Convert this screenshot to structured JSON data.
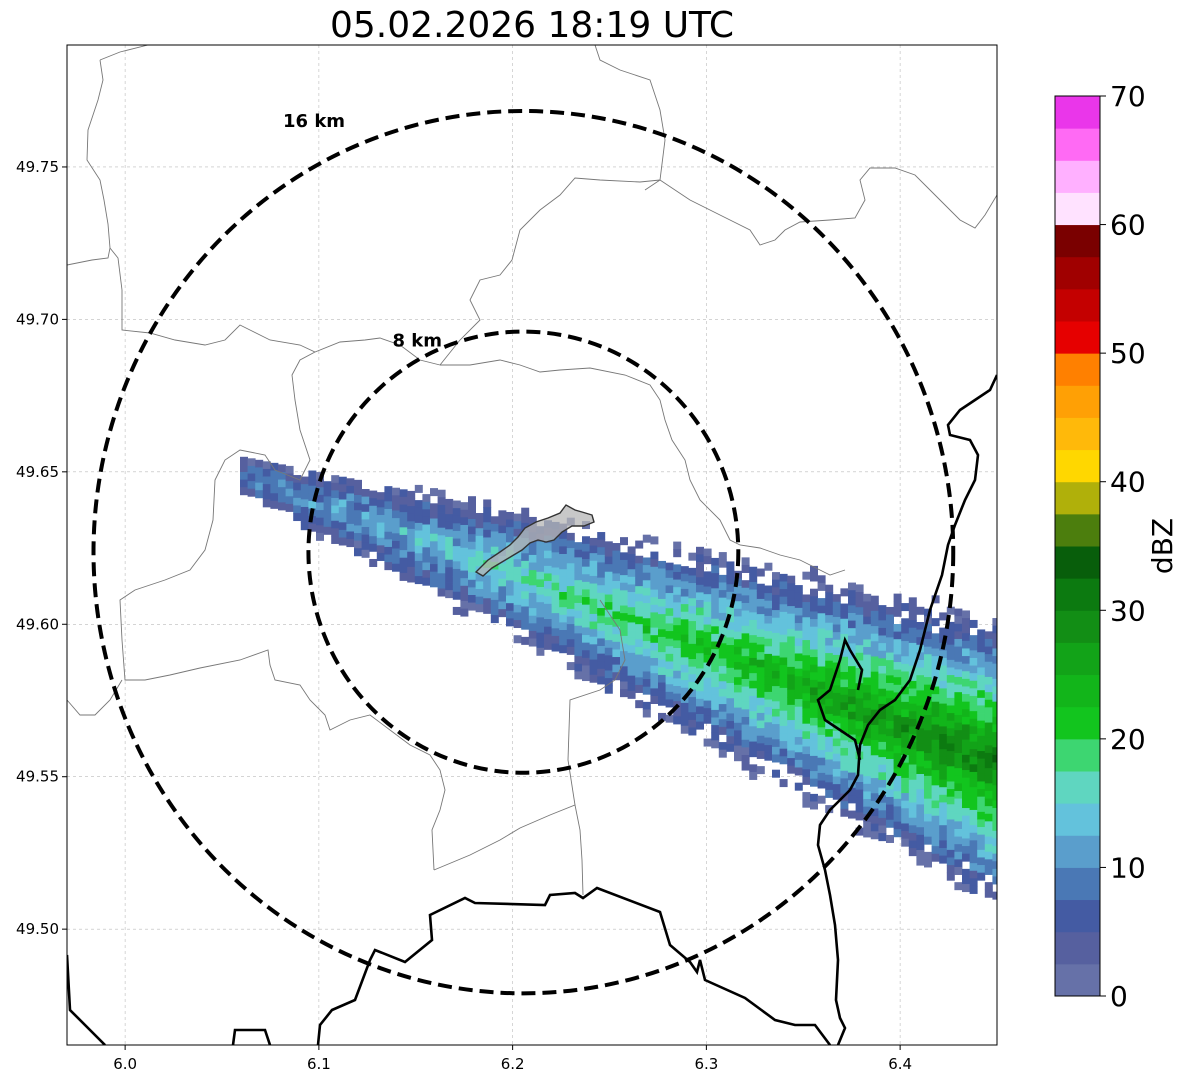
{
  "title": "05.02.2026 18:19 UTC",
  "map": {
    "lon_range": [
      5.97,
      6.45
    ],
    "lat_range": [
      49.462,
      49.79
    ],
    "grid": true,
    "x_ticks": [
      "6.0",
      "6.1",
      "6.2",
      "6.3",
      "6.4"
    ],
    "y_ticks": [
      "49.50",
      "49.55",
      "49.60",
      "49.65",
      "49.70",
      "49.75"
    ],
    "range_rings": [
      {
        "label": "16 km",
        "radius_km": 16
      },
      {
        "label": "8 km",
        "radius_km": 8
      }
    ],
    "radar_center": {
      "lon": 6.204,
      "lat": 49.623
    },
    "precipitation_band": {
      "direction": "west-northwest to east-southeast",
      "max_dbz": 25,
      "description_visible": false
    },
    "highlight_area": {
      "fill": "#b5b5b5",
      "alpha": 0.7
    }
  },
  "colorbar": {
    "label": "dBZ",
    "min": 0,
    "max": 70,
    "tick_labels": [
      "0",
      "10",
      "20",
      "30",
      "40",
      "50",
      "60",
      "70"
    ],
    "colors": [
      "#6671a8",
      "#56609f",
      "#445ba3",
      "#4a78b5",
      "#5a9ecc",
      "#63c2dc",
      "#5fd6c0",
      "#3dd671",
      "#12c51e",
      "#12b51a",
      "#12a318",
      "#128e15",
      "#0c7a10",
      "#085e0b",
      "#4c7e0d",
      "#b0b00a",
      "#ffd700",
      "#ffb90a",
      "#ffa005",
      "#ff8000",
      "#e60000",
      "#c40000",
      "#a00000",
      "#7a0000",
      "#ffe2ff",
      "#ffb0ff",
      "#ff6af4",
      "#ea36ea"
    ]
  }
}
